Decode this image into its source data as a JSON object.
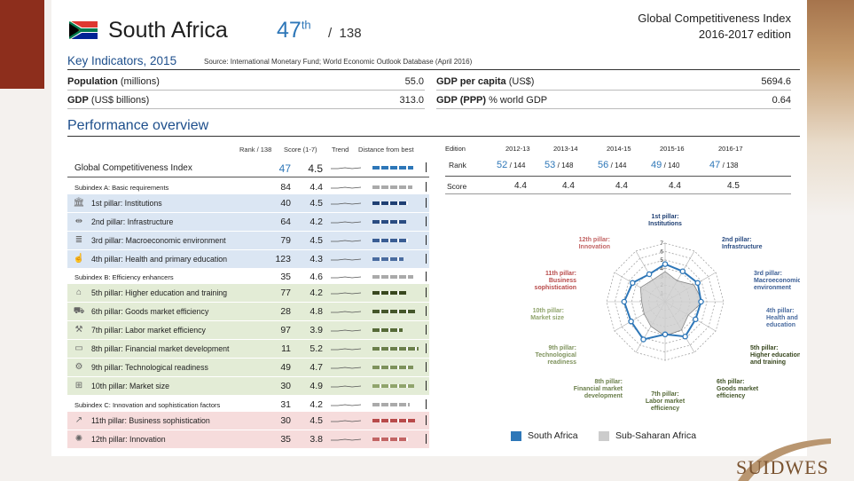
{
  "header": {
    "country": "South Africa",
    "rank": "47",
    "rank_suffix": "th",
    "slash": "/",
    "total": "138",
    "title": "Global Competitiveness Index",
    "edition": "2016-2017 edition"
  },
  "key_indicators": {
    "title": "Key Indicators, 2015",
    "source": "Source: International Monetary Fund; World Economic Outlook Database (April 2016)",
    "left": [
      {
        "label_bold": "Population",
        "label_rest": " (millions)",
        "value": "55.0"
      },
      {
        "label_bold": "GDP",
        "label_rest": " (US$ billions)",
        "value": "313.0"
      }
    ],
    "right": [
      {
        "label_bold": "GDP per capita",
        "label_rest": " (US$)",
        "value": "5694.6"
      },
      {
        "label_bold": "GDP (PPP)",
        "label_rest": " % world GDP",
        "value": "0.64"
      }
    ]
  },
  "performance": {
    "title": "Performance overview",
    "col_rank": "Rank / 138",
    "col_score": "Score (1-7)",
    "col_trend": "Trend",
    "col_distance": "Distance from best",
    "rows": [
      {
        "label": "Global Competitiveness Index",
        "rank": "47",
        "score": "4.5",
        "kind": "gci",
        "bar": 0.82,
        "color": "#2e77b8"
      },
      {
        "label": "Subindex A: Basic requirements",
        "rank": "84",
        "score": "4.4",
        "kind": "sub",
        "bar": 0.8,
        "color": "#aaaaaa"
      },
      {
        "label": "1st pillar: Institutions",
        "rank": "40",
        "score": "4.5",
        "kind": "blue",
        "icon": "institutions-icon",
        "glyph": "🏛",
        "bar": 0.72,
        "color": "#1f3f73"
      },
      {
        "label": "2nd pillar: Infrastructure",
        "rank": "64",
        "score": "4.2",
        "kind": "blue",
        "icon": "infrastructure-icon",
        "glyph": "⇹",
        "bar": 0.68,
        "color": "#2a4c82"
      },
      {
        "label": "3rd pillar: Macroeconomic environment",
        "rank": "79",
        "score": "4.5",
        "kind": "blue",
        "icon": "macroeconomic-icon",
        "glyph": "≣",
        "bar": 0.72,
        "color": "#3a5d94"
      },
      {
        "label": "4th pillar: Health and primary education",
        "rank": "123",
        "score": "4.3",
        "kind": "blue",
        "icon": "health-icon",
        "glyph": "☝",
        "bar": 0.62,
        "color": "#4a6ca0"
      },
      {
        "label": "Subindex B: Efficiency enhancers",
        "rank": "35",
        "score": "4.6",
        "kind": "sub",
        "bar": 0.82,
        "color": "#aaaaaa"
      },
      {
        "label": "5th pillar: Higher education and training",
        "rank": "77",
        "score": "4.2",
        "kind": "green",
        "icon": "education-icon",
        "glyph": "⌂",
        "bar": 0.68,
        "color": "#38471e"
      },
      {
        "label": "6th pillar: Goods market efficiency",
        "rank": "28",
        "score": "4.8",
        "kind": "green",
        "icon": "goods-market-icon",
        "glyph": "⛟",
        "bar": 0.85,
        "color": "#44562a"
      },
      {
        "label": "7th pillar: Labor market efficiency",
        "rank": "97",
        "score": "3.9",
        "kind": "green",
        "icon": "labor-market-icon",
        "glyph": "⚒",
        "bar": 0.6,
        "color": "#566a38"
      },
      {
        "label": "8th pillar: Financial market development",
        "rank": "11",
        "score": "5.2",
        "kind": "green",
        "icon": "financial-market-icon",
        "glyph": "▭",
        "bar": 0.92,
        "color": "#6b7f4b"
      },
      {
        "label": "9th pillar: Technological readiness",
        "rank": "49",
        "score": "4.7",
        "kind": "green",
        "icon": "technology-icon",
        "glyph": "⚙",
        "bar": 0.82,
        "color": "#7e925c"
      },
      {
        "label": "10th pillar: Market size",
        "rank": "30",
        "score": "4.9",
        "kind": "green",
        "icon": "market-size-icon",
        "glyph": "⊞",
        "bar": 0.84,
        "color": "#90a46c"
      },
      {
        "label": "Subindex C: Innovation and sophistication factors",
        "rank": "31",
        "score": "4.2",
        "kind": "sub",
        "bar": 0.75,
        "color": "#aaaaaa"
      },
      {
        "label": "11th pillar: Business sophistication",
        "rank": "30",
        "score": "4.5",
        "kind": "red",
        "icon": "business-icon",
        "glyph": "↗",
        "bar": 0.85,
        "color": "#b84a4a"
      },
      {
        "label": "12th pillar: Innovation",
        "rank": "35",
        "score": "3.8",
        "kind": "red",
        "icon": "innovation-icon",
        "glyph": "✺",
        "bar": 0.72,
        "color": "#c26464"
      }
    ]
  },
  "editions": {
    "header": [
      "Edition",
      "2012-13",
      "2013-14",
      "2014-15",
      "2015-16",
      "2016-17"
    ],
    "rank_label": "Rank",
    "ranks": [
      {
        "rank": "52",
        "total": "/ 144"
      },
      {
        "rank": "53",
        "total": "/ 148"
      },
      {
        "rank": "56",
        "total": "/ 144"
      },
      {
        "rank": "49",
        "total": "/ 140"
      },
      {
        "rank": "47",
        "total": "/ 138"
      }
    ],
    "score_label": "Score",
    "scores": [
      "4.4",
      "4.4",
      "4.4",
      "4.4",
      "4.5"
    ]
  },
  "radar": {
    "ticks": [
      "1",
      "2",
      "3",
      "4",
      "5",
      "6",
      "7"
    ],
    "pillars": [
      "1st pillar:|Institutions",
      "2nd pillar:|Infrastructure",
      "3rd pillar:|Macroeconomic|environment",
      "4th pillar:|Health and primary|education",
      "5th pillar:|Higher education|and training",
      "6th pillar:|Goods market|efficiency",
      "7th pillar:|Labor market|efficiency",
      "8th pillar:|Financial market|development",
      "9th pillar:|Technological|readiness",
      "10th pillar:|Market size",
      "11th pillar:|Business|sophistication",
      "12th pillar:|Innovation"
    ],
    "pillar_colors": [
      "#1f3f73",
      "#2a4c82",
      "#3a5d94",
      "#4a6ca0",
      "#38471e",
      "#44562a",
      "#566a38",
      "#6b7f4b",
      "#7e925c",
      "#90a46c",
      "#b84a4a",
      "#c26464"
    ],
    "south_africa": [
      4.5,
      4.2,
      4.5,
      4.3,
      4.2,
      4.8,
      3.9,
      5.2,
      4.7,
      4.9,
      4.5,
      3.8
    ],
    "sub_saharan": [
      3.6,
      2.9,
      4.0,
      4.5,
      3.2,
      3.9,
      4.1,
      3.4,
      2.9,
      2.8,
      3.4,
      3.0
    ],
    "legend": {
      "a": "South Africa",
      "b": "Sub-Saharan Africa",
      "a_color": "#2e77b8",
      "b_color": "#cccccc"
    }
  },
  "footer": {
    "brand": "SUIDWES"
  }
}
